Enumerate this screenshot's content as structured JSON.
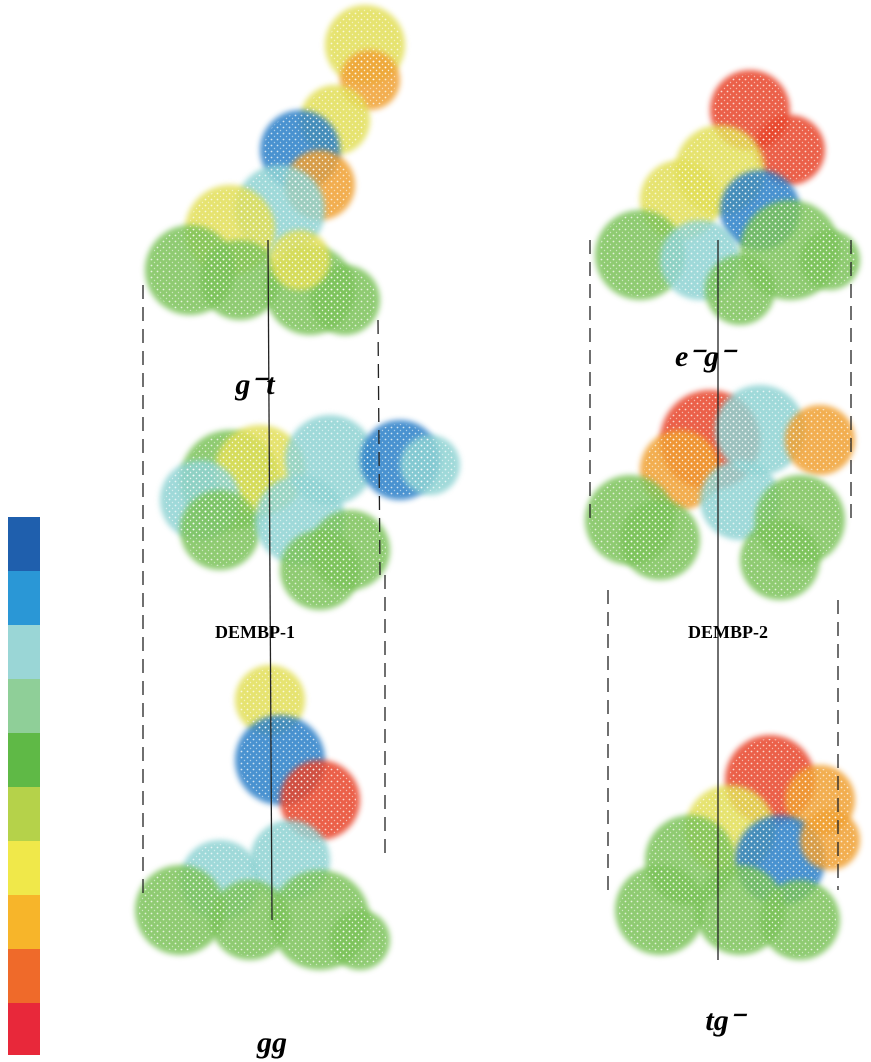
{
  "labels": {
    "a": "g⁻t",
    "b": "e⁻g⁻",
    "c": "DEMBP-1",
    "d": "DEMBP-2",
    "e": "gg",
    "f": "tg⁻"
  }
}
